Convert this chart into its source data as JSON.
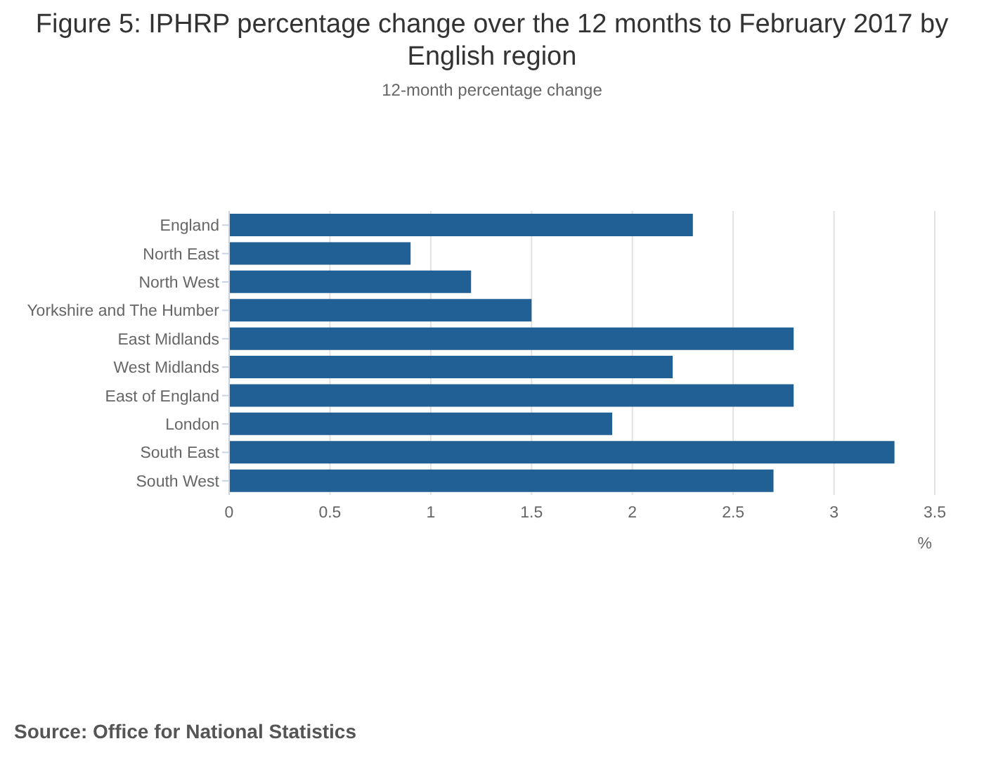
{
  "chart_data": {
    "type": "bar",
    "orientation": "horizontal",
    "title": "Figure 5: IPHRP percentage change over the 12 months to February 2017 by English region",
    "subtitle": "12-month percentage change",
    "xlabel": "%",
    "categories": [
      "England",
      "North East",
      "North West",
      "Yorkshire and The Humber",
      "East Midlands",
      "West Midlands",
      "East of England",
      "London",
      "South East",
      "South West"
    ],
    "values": [
      2.3,
      0.9,
      1.2,
      1.5,
      2.8,
      2.2,
      2.8,
      1.9,
      3.3,
      2.7
    ],
    "color": "#206095",
    "xlim": [
      0,
      3.5
    ],
    "xticks": [
      0,
      0.5,
      1,
      1.5,
      2,
      2.5,
      3,
      3.5
    ],
    "grid": "x",
    "annotations": [
      "Source: Office for National Statistics"
    ]
  }
}
